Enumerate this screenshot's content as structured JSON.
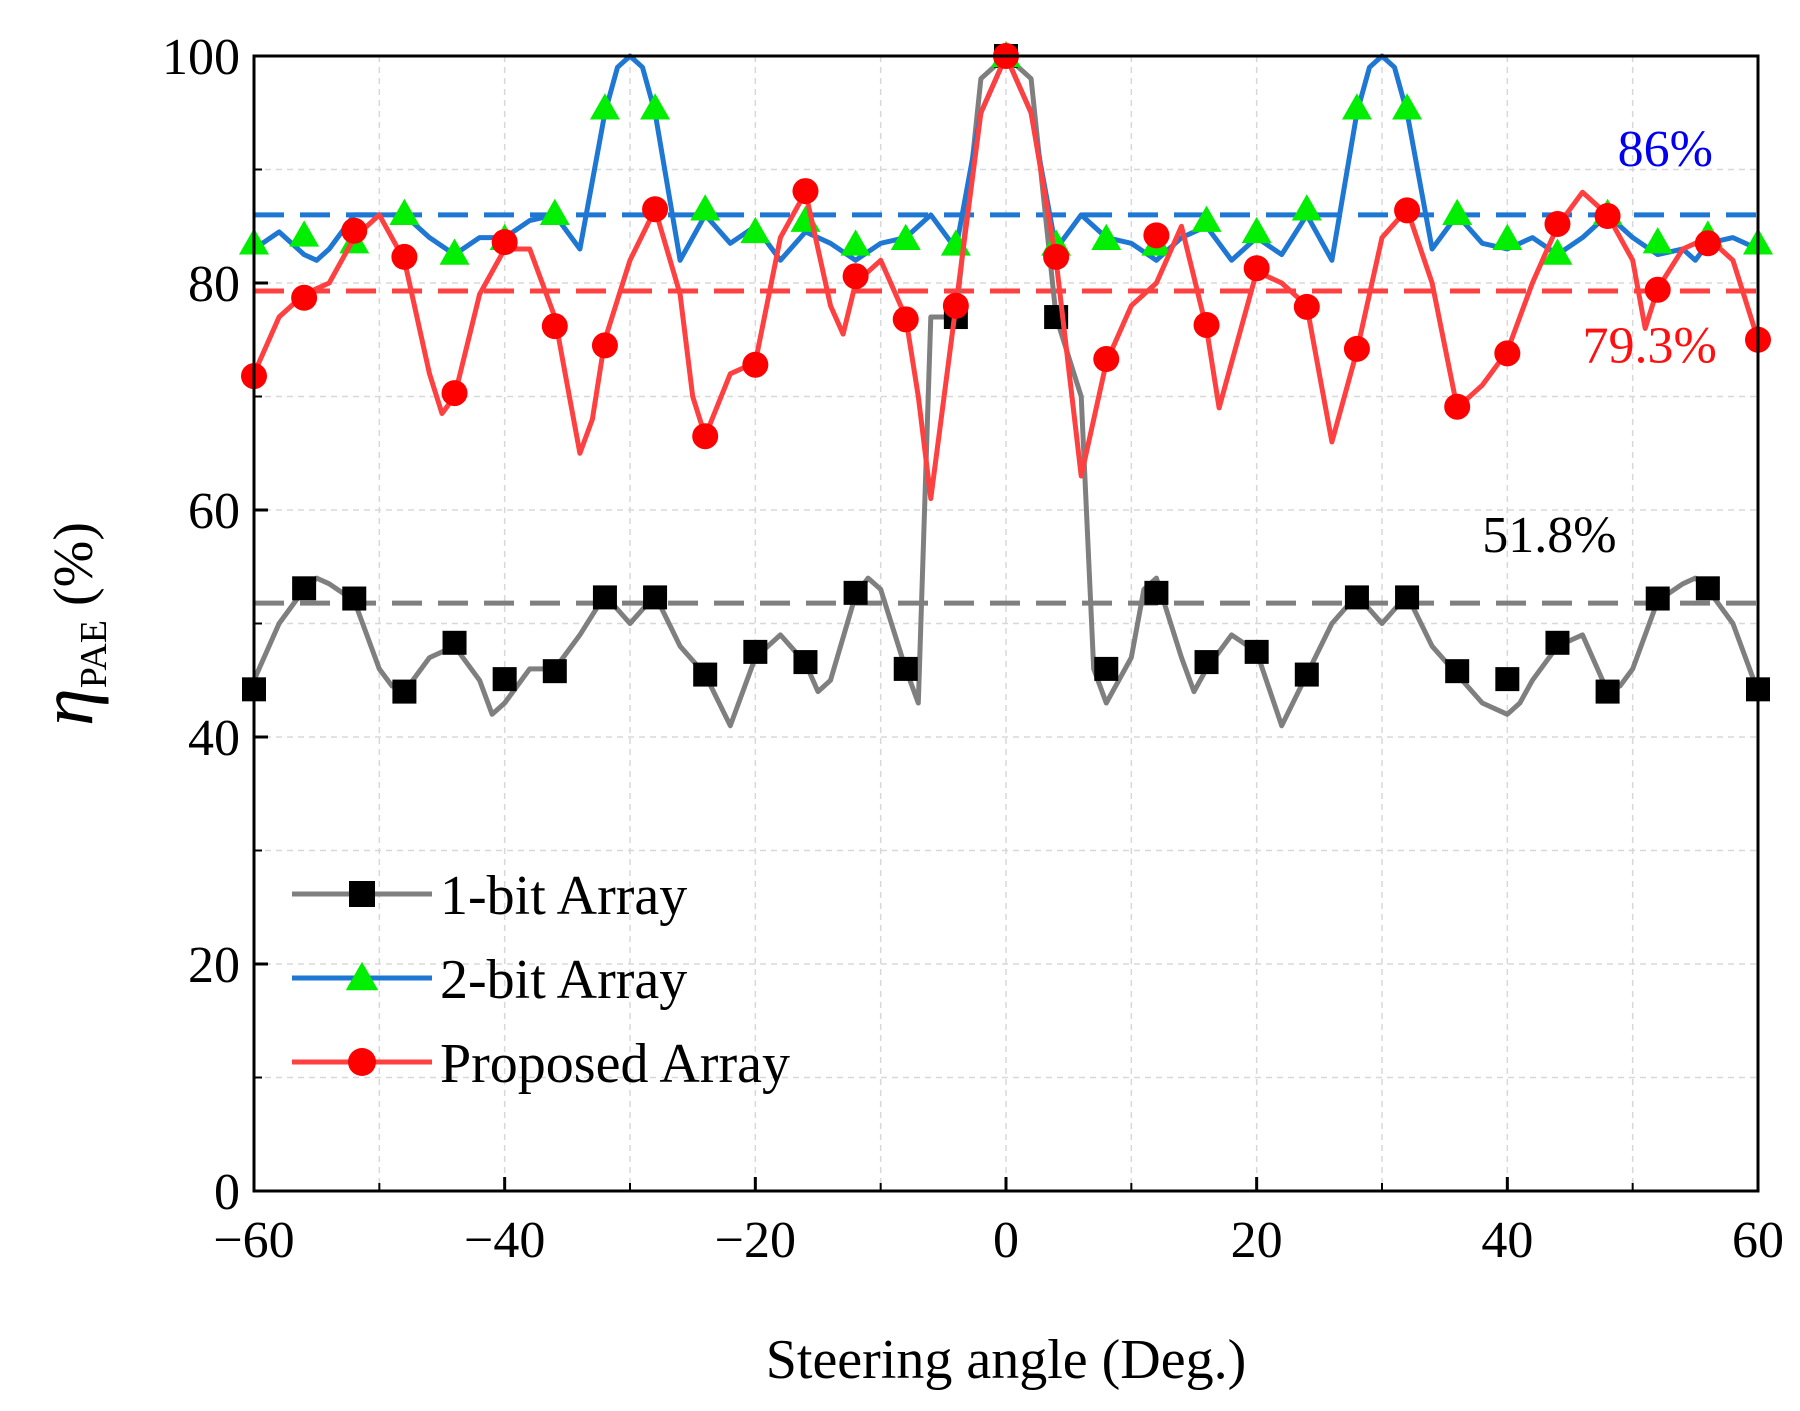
{
  "chart_data": {
    "type": "line",
    "xlabel": "Steering angle (Deg.)",
    "ylabel_symbol": "η",
    "ylabel_sub": "PAE",
    "ylabel_unit": " (%)",
    "xlim": [
      -60,
      60
    ],
    "ylim": [
      0,
      100
    ],
    "xticks": [
      -60,
      -40,
      -20,
      0,
      20,
      40,
      60
    ],
    "yticks": [
      0,
      20,
      40,
      60,
      80,
      100
    ],
    "x_tick_labels": [
      "−60",
      "−40",
      "−20",
      "0",
      "20",
      "40",
      "60"
    ],
    "y_tick_labels": [
      "0",
      "20",
      "40",
      "60",
      "80",
      "100"
    ],
    "grid": true,
    "legend_position": "bottom-left",
    "series": [
      {
        "name": "1-bit Array",
        "color": "#7f7f7f",
        "marker": "square",
        "marker_color": "#000000",
        "x": [
          -60,
          -58,
          -56,
          -55,
          -54,
          -52,
          -50,
          -49,
          -48,
          -46,
          -44,
          -42,
          -41,
          -40,
          -38,
          -36,
          -34,
          -32,
          -30,
          -28,
          -26,
          -24,
          -22,
          -20,
          -18,
          -16,
          -15,
          -14,
          -12,
          -11,
          -10,
          -8,
          -7,
          -6,
          -4,
          -2,
          0,
          2,
          4,
          6,
          7,
          8,
          10,
          11,
          12,
          14,
          15,
          16,
          18,
          20,
          22,
          24,
          26,
          28,
          30,
          32,
          34,
          36,
          38,
          40,
          41,
          42,
          44,
          46,
          48,
          49,
          50,
          52,
          54,
          55,
          56,
          58,
          60
        ],
        "y": [
          45,
          50,
          53,
          54,
          53.5,
          52,
          46,
          44.5,
          44,
          47,
          48,
          45,
          42,
          43,
          46,
          46,
          49,
          52.5,
          50,
          52.5,
          48,
          45.5,
          41,
          47,
          49,
          46.5,
          44,
          45,
          52.5,
          54,
          53,
          46,
          43,
          77,
          77,
          98,
          100,
          98,
          77,
          70,
          46,
          43,
          47,
          53,
          54,
          47,
          44,
          46,
          49,
          47.5,
          41,
          45.5,
          50,
          52.5,
          50,
          52.5,
          48,
          45.5,
          43,
          42,
          43,
          45,
          48,
          49,
          44,
          44.5,
          46,
          52,
          53.5,
          54,
          53,
          50,
          44
        ],
        "marker_x": [
          -60,
          -56,
          -52,
          -48,
          -44,
          -40,
          -36,
          -32,
          -28,
          -24,
          -20,
          -16,
          -12,
          -8,
          -4,
          0,
          4,
          8,
          12,
          16,
          20,
          24,
          28,
          32,
          36,
          40,
          44,
          48,
          52,
          56,
          60
        ],
        "marker_y": [
          44.2,
          53.1,
          52.2,
          44,
          48.3,
          45.1,
          45.8,
          52.3,
          52.3,
          45.5,
          47.5,
          46.6,
          52.7,
          46,
          77,
          100,
          77,
          46,
          52.7,
          46.6,
          47.5,
          45.5,
          52.3,
          52.3,
          45.8,
          45.1,
          48.3,
          44,
          52.2,
          53.1,
          44.2
        ]
      },
      {
        "name": "2-bit Array",
        "color": "#1f77d4",
        "marker": "triangle",
        "marker_color": "#00ee00",
        "x": [
          -60,
          -58,
          -56,
          -55,
          -54,
          -52,
          -50,
          -48,
          -46,
          -44,
          -42,
          -40,
          -38,
          -36,
          -34,
          -32,
          -31,
          -30,
          -29,
          -28,
          -26,
          -24,
          -22,
          -20,
          -18,
          -16,
          -14,
          -12,
          -10,
          -8,
          -6,
          -4,
          -2,
          0,
          2,
          4,
          6,
          8,
          10,
          12,
          14,
          16,
          18,
          20,
          22,
          24,
          26,
          28,
          29,
          30,
          31,
          32,
          34,
          36,
          38,
          40,
          42,
          44,
          46,
          48,
          50,
          52,
          54,
          55,
          56,
          58,
          60
        ],
        "y": [
          83,
          84.5,
          82.5,
          82,
          83,
          86,
          86,
          86,
          84,
          82.5,
          84,
          84,
          85.5,
          86,
          83,
          95,
          99,
          100,
          99,
          95,
          82,
          86,
          83.5,
          85,
          82,
          84.5,
          83.5,
          82,
          83.5,
          84,
          86,
          83,
          95,
          100,
          95,
          83,
          86,
          84,
          83.5,
          82,
          84,
          85,
          82,
          84,
          82.5,
          86,
          82,
          95,
          99,
          100,
          99,
          95,
          83,
          86,
          83.5,
          83,
          84,
          82.5,
          84,
          86,
          84,
          82.5,
          83,
          82,
          83.5,
          84,
          83
        ],
        "marker_x": [
          -60,
          -56,
          -52,
          -48,
          -44,
          -40,
          -36,
          -32,
          -28,
          -24,
          -20,
          -16,
          -12,
          -8,
          -4,
          0,
          4,
          8,
          12,
          16,
          20,
          24,
          28,
          32,
          36,
          40,
          44,
          48,
          52,
          56,
          60
        ],
        "marker_y": [
          83.5,
          84.2,
          83.6,
          86.1,
          82.6,
          83.9,
          86.1,
          95.4,
          95.4,
          86.5,
          84.5,
          85.5,
          83.4,
          83.9,
          83.4,
          100,
          83.4,
          83.9,
          83.4,
          85.5,
          84.5,
          86.5,
          95.4,
          95.4,
          86.1,
          83.9,
          82.6,
          86.1,
          83.6,
          84.2,
          83.5
        ]
      },
      {
        "name": "Proposed Array",
        "color": "#ff4040",
        "marker": "circle",
        "marker_color": "#ff0000",
        "x": [
          -60,
          -58,
          -56,
          -54,
          -52,
          -50,
          -48,
          -46,
          -45,
          -44,
          -42,
          -40,
          -38,
          -36,
          -35,
          -34,
          -33,
          -32,
          -30,
          -28,
          -26,
          -25,
          -24,
          -22,
          -20,
          -18,
          -16,
          -14,
          -13,
          -12,
          -10,
          -8,
          -7,
          -6,
          -4,
          -2,
          0,
          2,
          4,
          6,
          8,
          10,
          12,
          14,
          16,
          17,
          18,
          20,
          22,
          24,
          25,
          26,
          28,
          30,
          32,
          34,
          36,
          38,
          40,
          42,
          44,
          46,
          48,
          50,
          51,
          52,
          54,
          56,
          58,
          60
        ],
        "y": [
          72,
          77,
          79,
          80,
          84,
          86,
          82,
          72,
          68.5,
          70,
          79,
          83,
          83,
          77,
          71,
          65,
          68,
          75,
          82,
          86.5,
          79,
          70,
          66.5,
          72,
          73,
          84,
          88,
          78,
          75.5,
          80,
          82,
          77,
          70,
          61,
          78,
          95,
          100,
          95,
          82,
          63,
          73,
          78,
          80,
          85,
          76,
          69,
          73,
          81,
          80,
          78,
          72,
          66,
          74,
          84,
          86.5,
          80,
          69,
          71,
          74,
          80,
          85,
          88,
          86,
          82,
          76,
          79.5,
          83,
          84,
          82,
          75
        ],
        "marker_x": [
          -60,
          -56,
          -52,
          -48,
          -44,
          -40,
          -36,
          -32,
          -28,
          -24,
          -20,
          -16,
          -12,
          -8,
          -4,
          0,
          4,
          8,
          12,
          16,
          20,
          24,
          28,
          32,
          36,
          40,
          44,
          48,
          52,
          56,
          60
        ],
        "marker_y": [
          71.8,
          78.7,
          84.6,
          82.3,
          70.3,
          83.6,
          76.2,
          74.5,
          86.5,
          66.5,
          72.8,
          88.1,
          80.6,
          76.8,
          78,
          100,
          82.3,
          73.3,
          84.2,
          76.3,
          81.3,
          77.9,
          74.2,
          86.4,
          69.1,
          73.8,
          85.2,
          85.9,
          79.4,
          83.5,
          75
        ]
      }
    ],
    "reference_lines": [
      {
        "y": 51.8,
        "color": "#7f7f7f",
        "label": "51.8%",
        "label_x": 38,
        "label_y": 56.3
      },
      {
        "y": 86,
        "color": "#1f77d4",
        "label": "86%",
        "label_x": 48.8,
        "label_y": 90.3
      },
      {
        "y": 79.3,
        "color": "#ff4040",
        "label": "79.3%",
        "label_x": 46,
        "label_y": 73
      }
    ],
    "annotation_colors": [
      "#000000",
      "#0000ee",
      "#ff1010"
    ]
  }
}
